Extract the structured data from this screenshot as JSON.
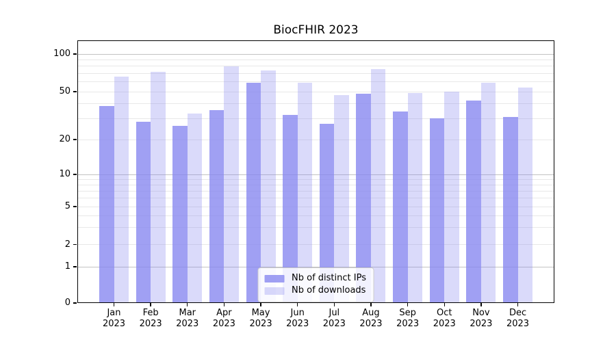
{
  "chart": {
    "title": "BiocFHIR 2023"
  },
  "chart_data": {
    "type": "bar",
    "title": "BiocFHIR 2023",
    "categories": [
      "Jan 2023",
      "Feb 2023",
      "Mar 2023",
      "Apr 2023",
      "May 2023",
      "Jun 2023",
      "Jul 2023",
      "Aug 2023",
      "Sep 2023",
      "Oct 2023",
      "Nov 2023",
      "Dec 2023"
    ],
    "x_tick_months": [
      "Jan",
      "Feb",
      "Mar",
      "Apr",
      "May",
      "Jun",
      "Jul",
      "Aug",
      "Sep",
      "Oct",
      "Nov",
      "Dec"
    ],
    "x_tick_year": "2023",
    "series": [
      {
        "name": "Nb of distinct IPs",
        "color": "rgba(133,133,240,0.78)",
        "values": [
          38,
          28,
          26,
          35,
          59,
          32,
          27,
          48,
          34,
          30,
          42,
          31
        ]
      },
      {
        "name": "Nb of downloads",
        "color": "rgba(133,133,240,0.30)",
        "values": [
          66,
          72,
          33,
          80,
          74,
          59,
          47,
          76,
          49,
          50,
          59,
          54
        ]
      }
    ],
    "yscale": "symlog",
    "yticks": [
      0,
      1,
      2,
      5,
      10,
      20,
      50,
      100
    ],
    "ylim": [
      0,
      129
    ],
    "grid": "both",
    "legend_position": "lower center",
    "colors": {
      "grid_major": "#c2c2c2",
      "grid_minor": "#e8e8e8",
      "axis": "#000000",
      "background": "#ffffff"
    }
  }
}
